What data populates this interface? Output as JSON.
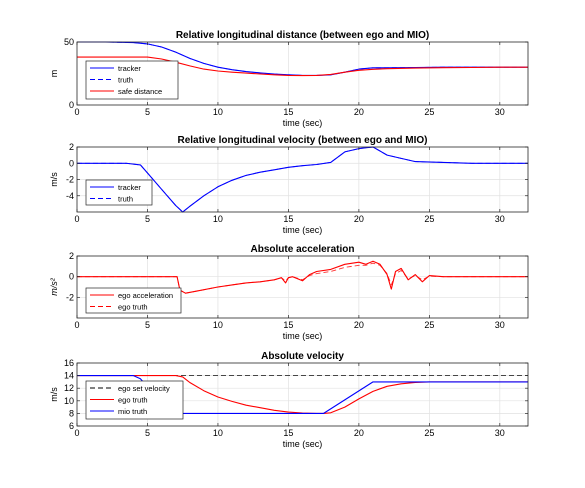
{
  "chart_data": [
    {
      "type": "line",
      "title": "Relative longitudinal distance (between ego and MIO)",
      "xlabel": "time (sec)",
      "ylabel": "m",
      "xlim": [
        0,
        32
      ],
      "ylim": [
        0,
        50
      ],
      "xticks": [
        0,
        5,
        10,
        15,
        20,
        25,
        30
      ],
      "yticks": [
        0,
        50
      ],
      "grid": true,
      "legend_position": "left",
      "series": [
        {
          "name": "tracker",
          "color": "#0000ff",
          "dash": "solid",
          "x": [
            0,
            2,
            4,
            5,
            6,
            7,
            8,
            9,
            10,
            11,
            12,
            13,
            14,
            15,
            16,
            17,
            18,
            19,
            20,
            21,
            22,
            24,
            26,
            28,
            30,
            32
          ],
          "y": [
            50,
            50,
            49.5,
            48.5,
            46,
            42,
            37,
            33,
            30,
            28,
            26.5,
            25.5,
            24.5,
            24,
            23.5,
            23.5,
            24,
            26,
            28.5,
            29.5,
            29.5,
            29.8,
            30,
            30,
            30,
            30
          ]
        },
        {
          "name": "truth",
          "color": "#0000ff",
          "dash": "dashed",
          "x": [
            0,
            2,
            4,
            5,
            6,
            7,
            8,
            9,
            10,
            11,
            12,
            13,
            14,
            15,
            16,
            17,
            18,
            19,
            20,
            21,
            22,
            24,
            26,
            28,
            30,
            32
          ],
          "y": [
            50,
            50,
            49.5,
            48.5,
            46,
            42,
            37,
            33,
            30,
            28,
            26.5,
            25.5,
            24.5,
            24,
            23.5,
            23.5,
            24,
            26,
            28.5,
            29.5,
            29.5,
            29.8,
            30,
            30,
            30,
            30
          ]
        },
        {
          "name": "safe distance",
          "color": "#ff0000",
          "dash": "solid",
          "x": [
            0,
            2,
            4,
            5,
            6,
            7,
            8,
            9,
            10,
            11,
            12,
            13,
            14,
            15,
            16,
            17,
            18,
            19,
            20,
            21,
            22,
            24,
            26,
            28,
            30,
            32
          ],
          "y": [
            38,
            38,
            38,
            38,
            36.5,
            34,
            31,
            28.5,
            27,
            26,
            25.3,
            24.6,
            24,
            23.5,
            23.3,
            23.5,
            24.3,
            26,
            27.5,
            28.3,
            28.8,
            29.3,
            29.6,
            29.8,
            30,
            30
          ]
        }
      ]
    },
    {
      "type": "line",
      "title": "Relative longitudinal velocity (between ego and MIO)",
      "xlabel": "time (sec)",
      "ylabel": "m/s",
      "xlim": [
        0,
        32
      ],
      "ylim": [
        -6,
        2
      ],
      "xticks": [
        0,
        5,
        10,
        15,
        20,
        25,
        30
      ],
      "yticks": [
        -4,
        -2,
        0,
        2
      ],
      "grid": true,
      "legend_position": "left",
      "series": [
        {
          "name": "tracker",
          "color": "#0000ff",
          "dash": "solid",
          "x": [
            0,
            2,
            3.5,
            4.5,
            5,
            6,
            7,
            7.5,
            8,
            9,
            10,
            11,
            12,
            13,
            14,
            15,
            16,
            17,
            18,
            19,
            20,
            21,
            22,
            23,
            24,
            26,
            28,
            30,
            32
          ],
          "y": [
            0,
            0,
            0,
            -0.2,
            -1.2,
            -3.2,
            -5.2,
            -6,
            -5.3,
            -4,
            -2.9,
            -2.1,
            -1.5,
            -1.1,
            -0.8,
            -0.5,
            -0.3,
            -0.15,
            0.1,
            1.4,
            1.8,
            2,
            1,
            0.6,
            0.2,
            0.1,
            0,
            0,
            0
          ]
        },
        {
          "name": "truth",
          "color": "#0000ff",
          "dash": "dashed",
          "x": [
            0,
            2,
            3.5,
            4.5,
            5,
            6,
            7,
            7.5,
            8,
            9,
            10,
            11,
            12,
            13,
            14,
            15,
            16,
            17,
            18,
            19,
            20,
            21,
            22,
            23,
            24,
            26,
            28,
            30,
            32
          ],
          "y": [
            0,
            0,
            0,
            -0.2,
            -1.2,
            -3.2,
            -5.2,
            -6,
            -5.3,
            -4,
            -2.9,
            -2.1,
            -1.5,
            -1.1,
            -0.8,
            -0.5,
            -0.3,
            -0.15,
            0.1,
            1.4,
            1.8,
            2,
            1,
            0.6,
            0.2,
            0.1,
            0,
            0,
            0
          ]
        }
      ]
    },
    {
      "type": "line",
      "title": "Absolute acceleration",
      "xlabel": "time (sec)",
      "ylabel": "m/s²",
      "xlim": [
        0,
        32
      ],
      "ylim": [
        -4,
        2
      ],
      "xticks": [
        0,
        5,
        10,
        15,
        20,
        25,
        30
      ],
      "yticks": [
        -2,
        0,
        2
      ],
      "grid": true,
      "legend_position": "left",
      "series": [
        {
          "name": "ego acceleration",
          "color": "#ff0000",
          "dash": "solid",
          "x": [
            0,
            2,
            4,
            6,
            7.1,
            7.3,
            7.7,
            8.5,
            10,
            11,
            12,
            13,
            14,
            14.5,
            14.8,
            15,
            15.3,
            16,
            16.5,
            17,
            18,
            19,
            20,
            20.5,
            21,
            21.5,
            22,
            22.3,
            22.6,
            23,
            23.5,
            24,
            24.5,
            25,
            26,
            28,
            30,
            32
          ],
          "y": [
            0,
            0,
            0,
            0,
            0,
            -1.3,
            -1.6,
            -1.4,
            -1.0,
            -0.8,
            -0.6,
            -0.5,
            -0.3,
            -0.1,
            -0.6,
            -0.1,
            0,
            -0.4,
            0.2,
            0.5,
            0.7,
            1.2,
            1.4,
            1.2,
            1.5,
            1.2,
            0.2,
            -1.2,
            0.5,
            0.8,
            -0.3,
            0.2,
            -0.5,
            0.1,
            0,
            0,
            0,
            0
          ]
        },
        {
          "name": "ego truth",
          "color": "#ff0000",
          "dash": "dashed",
          "x": [
            0,
            2,
            4,
            6,
            7.1,
            7.3,
            7.7,
            8.5,
            10,
            11,
            12,
            13,
            14,
            14.5,
            14.8,
            15,
            15.3,
            16,
            16.5,
            17,
            18,
            19,
            20,
            20.5,
            21,
            21.5,
            22,
            22.3,
            22.6,
            23,
            23.5,
            24,
            24.5,
            25,
            26,
            28,
            30,
            32
          ],
          "y": [
            0,
            0,
            0,
            0,
            0,
            -1.3,
            -1.6,
            -1.4,
            -1.0,
            -0.8,
            -0.6,
            -0.5,
            -0.3,
            -0.1,
            -0.4,
            -0.1,
            0,
            -0.3,
            0.1,
            0.3,
            0.5,
            0.9,
            1.1,
            1.1,
            1.3,
            1.1,
            0.3,
            -0.8,
            0.3,
            0.6,
            -0.2,
            0.1,
            -0.3,
            0.05,
            0,
            0,
            0,
            0
          ]
        }
      ]
    },
    {
      "type": "line",
      "title": "Absolute velocity",
      "xlabel": "time (sec)",
      "ylabel": "m/s",
      "xlim": [
        0,
        32
      ],
      "ylim": [
        6,
        16
      ],
      "xticks": [
        0,
        5,
        10,
        15,
        20,
        25,
        30
      ],
      "yticks": [
        6,
        8,
        10,
        12,
        14,
        16
      ],
      "grid": true,
      "legend_position": "left",
      "series": [
        {
          "name": "ego set velocity",
          "color": "#000000",
          "dash": "dashed",
          "x": [
            0,
            32
          ],
          "y": [
            14,
            14
          ]
        },
        {
          "name": "ego truth",
          "color": "#ff0000",
          "dash": "solid",
          "x": [
            0,
            2,
            4,
            6,
            7,
            7.5,
            8,
            9,
            10,
            11,
            12,
            13,
            14,
            15,
            16,
            17,
            17.5,
            18,
            19,
            20,
            21,
            22,
            23,
            24,
            25,
            26,
            28,
            30,
            32
          ],
          "y": [
            14,
            14,
            14,
            14,
            14,
            13.8,
            12.9,
            11.6,
            10.6,
            9.9,
            9.3,
            8.9,
            8.5,
            8.2,
            8.05,
            8,
            8,
            8.1,
            9,
            10.3,
            11.5,
            12.3,
            12.7,
            12.9,
            13,
            13,
            13,
            13,
            13
          ]
        },
        {
          "name": "mio truth",
          "color": "#0000ff",
          "dash": "solid",
          "x": [
            0,
            2,
            4,
            4.5,
            5,
            6,
            7,
            7.5,
            10,
            15,
            17.5,
            21,
            22,
            26,
            28,
            32
          ],
          "y": [
            14,
            14,
            14,
            13.5,
            12.2,
            10.4,
            8.6,
            8,
            8,
            8,
            8,
            13,
            13,
            13,
            13,
            13
          ]
        }
      ]
    }
  ]
}
